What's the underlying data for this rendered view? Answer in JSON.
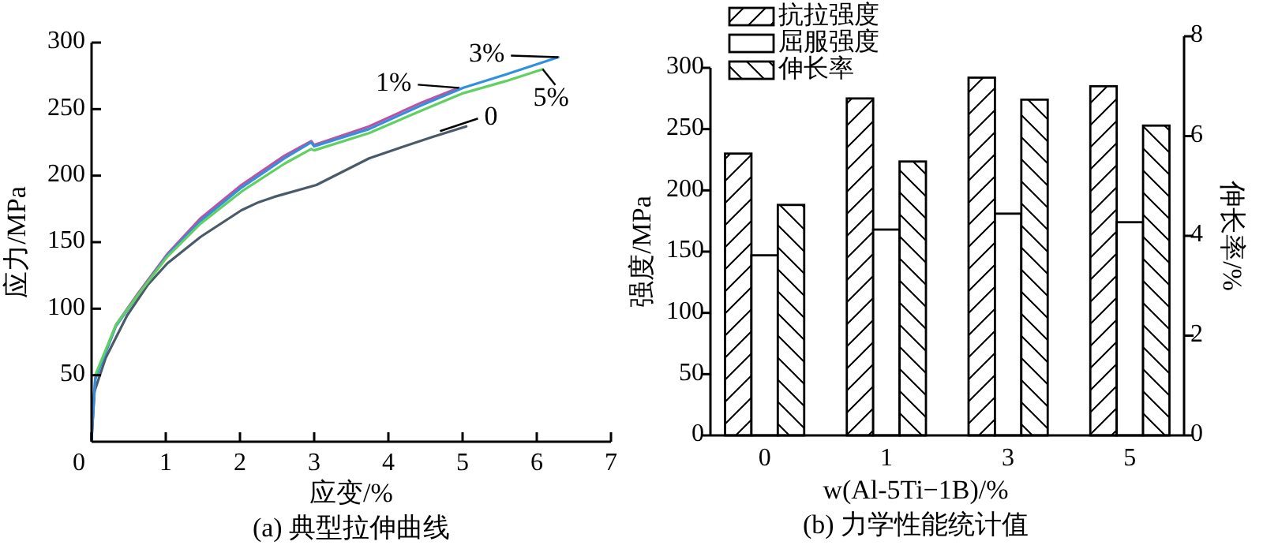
{
  "chart_data": [
    {
      "type": "line",
      "title": "(a) 典型拉伸曲线",
      "xlabel": "应变/%",
      "ylabel": "应力/MPa",
      "xlim": [
        0,
        7
      ],
      "xticks": [
        0,
        1,
        2,
        3,
        4,
        5,
        6,
        7
      ],
      "ylim": [
        0,
        300
      ],
      "yticks": [
        50,
        100,
        150,
        200,
        250,
        300
      ],
      "grid": false,
      "legend": false,
      "series": [
        {
          "name": "0",
          "color": "#4a5a68",
          "x": [
            0,
            0.035,
            0.19,
            0.48,
            0.76,
            1.02,
            1.47,
            2.02,
            2.25,
            2.46,
            3.03,
            3.74,
            4.16,
            4.59,
            5.05
          ],
          "values": [
            2,
            37,
            63,
            95,
            118,
            134,
            154,
            174,
            180,
            184,
            193,
            213,
            221,
            229,
            237
          ]
        },
        {
          "name": "1%",
          "color": "#c050a0",
          "x": [
            0,
            0.05,
            0.33,
            0.62,
            1.02,
            1.47,
            2.02,
            2.6,
            2.96,
            3.0,
            3.74,
            4.45,
            4.95
          ],
          "values": [
            2,
            48,
            88,
            111,
            141,
            168,
            193,
            215,
            226,
            223,
            237,
            255,
            266
          ]
        },
        {
          "name": "3%",
          "color": "#3090e0",
          "x": [
            0,
            0.05,
            0.33,
            0.62,
            1.02,
            1.47,
            2.02,
            2.6,
            2.96,
            3.0,
            3.74,
            4.45,
            5.01,
            5.58,
            6.29
          ],
          "values": [
            2,
            47,
            87,
            110,
            140,
            166,
            191,
            213,
            225,
            222,
            235,
            253,
            266,
            276,
            289
          ]
        },
        {
          "name": "5%",
          "color": "#60d060",
          "x": [
            0.05,
            0.33,
            0.62,
            1.02,
            1.47,
            2.02,
            2.6,
            2.96,
            3.0,
            3.74,
            4.45,
            5.01,
            5.58,
            6.08
          ],
          "values": [
            50,
            88,
            110,
            139,
            164,
            188,
            209,
            220,
            219,
            232,
            249,
            262,
            271,
            280
          ]
        }
      ]
    },
    {
      "type": "bar",
      "title": "(b) 力学性能统计值",
      "xlabel": "w(Al-5Ti−1B)/%",
      "ylabel": "强度/MPa",
      "y2label": "伸长率/%",
      "categories": [
        "0",
        "1",
        "3",
        "5"
      ],
      "ylim": [
        0,
        300
      ],
      "yticks": [
        0,
        50,
        100,
        150,
        200,
        250,
        300
      ],
      "y2lim": [
        0,
        8
      ],
      "y2ticks": [
        0,
        2,
        4,
        6,
        8
      ],
      "grid": false,
      "legend": "top left",
      "series": [
        {
          "name": "抗拉强度",
          "color": "#000000",
          "values": [
            230,
            275,
            292,
            285
          ]
        },
        {
          "name": "屈服强度",
          "color": "#ffffff",
          "values": [
            147,
            168,
            181,
            174
          ]
        },
        {
          "name": "伸长率",
          "color": "#000000",
          "axis": "y2",
          "values": [
            4.62,
            5.49,
            6.73,
            6.21
          ]
        }
      ]
    }
  ]
}
